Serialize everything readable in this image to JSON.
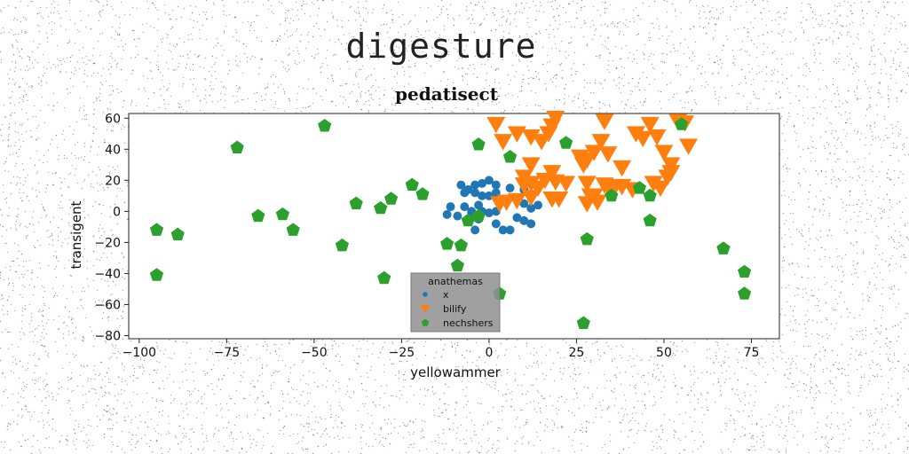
{
  "figure": {
    "suptitle": "digesture"
  },
  "chart_data": {
    "type": "scatter",
    "title": "pedatisect",
    "xlabel": "yellowammer",
    "ylabel": "transigent",
    "xlim": [
      -103,
      83
    ],
    "ylim": [
      -82,
      63
    ],
    "xticks": [
      -100,
      -75,
      -50,
      -25,
      0,
      25,
      50,
      75
    ],
    "yticks": [
      -80,
      -60,
      -40,
      -20,
      0,
      20,
      40,
      60
    ],
    "grid": false,
    "legend": {
      "title": "anathemas",
      "placement": "lower-center"
    },
    "series": [
      {
        "name": "x",
        "marker": "circle",
        "color": "#1f77b4",
        "points": [
          [
            -8,
            17
          ],
          [
            -6,
            14
          ],
          [
            -4,
            17
          ],
          [
            -2,
            18
          ],
          [
            0,
            20
          ],
          [
            2,
            17
          ],
          [
            -7,
            12
          ],
          [
            -4,
            12
          ],
          [
            -2,
            10
          ],
          [
            0,
            10
          ],
          [
            2,
            12
          ],
          [
            6,
            15
          ],
          [
            10,
            14
          ],
          [
            -12,
            -2
          ],
          [
            -11,
            3
          ],
          [
            -9,
            -3
          ],
          [
            -7,
            3
          ],
          [
            -5,
            0
          ],
          [
            -3,
            -5
          ],
          [
            -2,
            0
          ],
          [
            0,
            -1
          ],
          [
            2,
            0
          ],
          [
            4,
            -12
          ],
          [
            6,
            -12
          ],
          [
            8,
            -4
          ],
          [
            10,
            -6
          ],
          [
            12,
            -8
          ],
          [
            12,
            2
          ],
          [
            14,
            4
          ],
          [
            10,
            5
          ],
          [
            8,
            8
          ],
          [
            -4,
            -12
          ],
          [
            2,
            -8
          ],
          [
            -5,
            -1
          ],
          [
            -3,
            4
          ]
        ]
      },
      {
        "name": "bilify",
        "marker": "triangle-down",
        "color": "#ff7f0e",
        "points": [
          [
            2,
            56
          ],
          [
            4,
            45
          ],
          [
            8,
            50
          ],
          [
            12,
            48
          ],
          [
            15,
            45
          ],
          [
            17,
            50
          ],
          [
            19,
            60
          ],
          [
            18,
            55
          ],
          [
            26,
            35
          ],
          [
            28,
            33
          ],
          [
            30,
            38
          ],
          [
            32,
            45
          ],
          [
            34,
            37
          ],
          [
            33,
            58
          ],
          [
            38,
            28
          ],
          [
            42,
            50
          ],
          [
            44,
            47
          ],
          [
            46,
            56
          ],
          [
            48,
            48
          ],
          [
            50,
            38
          ],
          [
            52,
            30
          ],
          [
            54,
            58
          ],
          [
            56,
            57
          ],
          [
            57,
            42
          ],
          [
            12,
            30
          ],
          [
            12,
            18
          ],
          [
            14,
            15
          ],
          [
            16,
            20
          ],
          [
            18,
            25
          ],
          [
            19,
            19
          ],
          [
            20,
            8
          ],
          [
            22,
            18
          ],
          [
            27,
            30
          ],
          [
            28,
            18
          ],
          [
            29,
            10
          ],
          [
            31,
            6
          ],
          [
            33,
            17
          ],
          [
            35,
            12
          ],
          [
            36,
            16
          ],
          [
            38,
            16
          ],
          [
            41,
            14
          ],
          [
            47,
            18
          ],
          [
            49,
            15
          ],
          [
            51,
            22
          ],
          [
            52,
            25
          ],
          [
            10,
            22
          ],
          [
            10,
            17
          ],
          [
            3,
            5
          ],
          [
            5,
            6
          ],
          [
            8,
            7
          ],
          [
            12,
            9
          ],
          [
            18,
            8
          ],
          [
            28,
            5
          ],
          [
            30,
            10
          ]
        ]
      },
      {
        "name": "nechshers",
        "marker": "pentagon",
        "color": "#2ca02c",
        "points": [
          [
            -47,
            55
          ],
          [
            -72,
            41
          ],
          [
            -95,
            -12
          ],
          [
            -89,
            -15
          ],
          [
            -95,
            -41
          ],
          [
            -66,
            -3
          ],
          [
            -59,
            -2
          ],
          [
            -56,
            -12
          ],
          [
            -42,
            -22
          ],
          [
            -38,
            5
          ],
          [
            -31,
            2
          ],
          [
            -28,
            8
          ],
          [
            -22,
            17
          ],
          [
            -19,
            11
          ],
          [
            -30,
            -43
          ],
          [
            -12,
            -21
          ],
          [
            -8,
            -22
          ],
          [
            -9,
            -35
          ],
          [
            -6,
            -6
          ],
          [
            -3,
            -3
          ],
          [
            -3,
            43
          ],
          [
            3,
            -53
          ],
          [
            6,
            35
          ],
          [
            22,
            44
          ],
          [
            28,
            -18
          ],
          [
            27,
            -72
          ],
          [
            35,
            10
          ],
          [
            43,
            15
          ],
          [
            46,
            -6
          ],
          [
            46,
            10
          ],
          [
            55,
            56
          ],
          [
            67,
            -24
          ],
          [
            73,
            -39
          ],
          [
            73,
            -53
          ]
        ]
      }
    ]
  }
}
